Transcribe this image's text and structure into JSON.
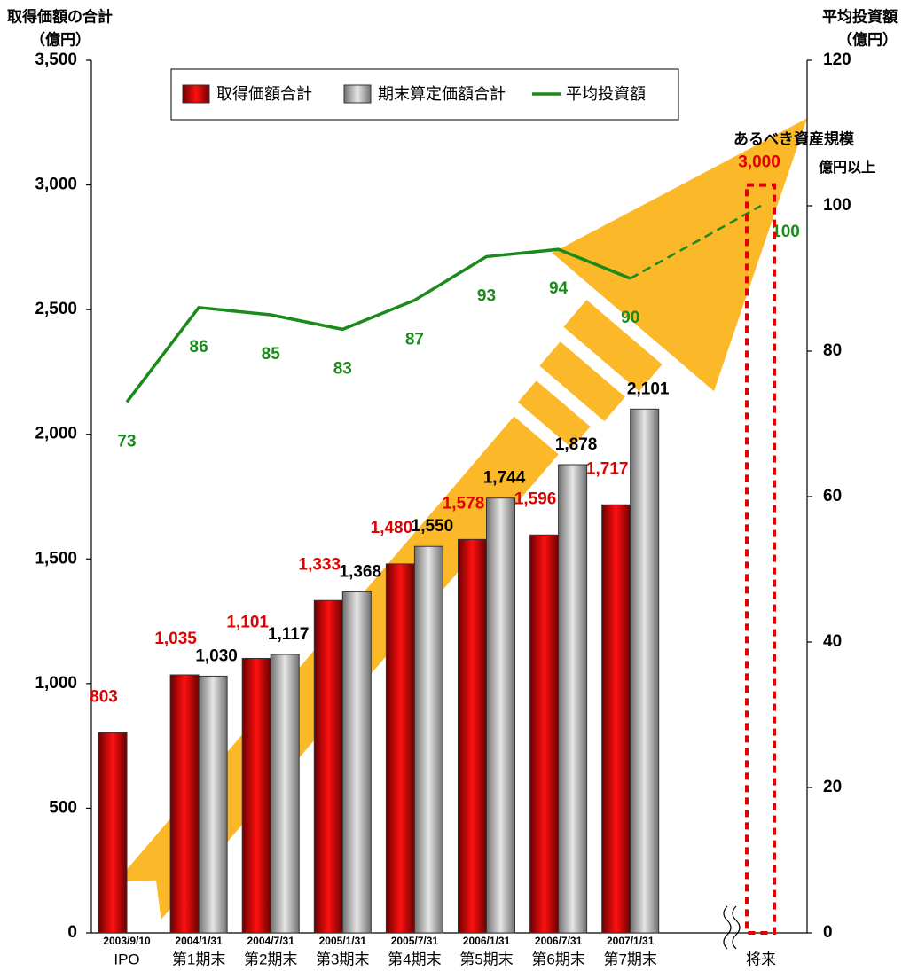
{
  "chart_data": {
    "type": "bar",
    "y_title": "取得価額の合計",
    "y_unit": "（億円）",
    "y2_title": "平均投資額",
    "y2_unit": "（億円）",
    "categories": [
      "IPO",
      "第1期末",
      "第2期末",
      "第3期末",
      "第4期末",
      "第5期末",
      "第6期末",
      "第7期末",
      "将来"
    ],
    "dates": [
      "2003/9/10",
      "2004/1/31",
      "2004/7/31",
      "2005/1/31",
      "2005/7/31",
      "2006/1/31",
      "2006/7/31",
      "2007/1/31",
      null
    ],
    "series": [
      {
        "name": "取得価額合計",
        "color": "#e00000",
        "values": [
          803,
          1035,
          1101,
          1333,
          1480,
          1578,
          1596,
          1717,
          null
        ],
        "value_labels": [
          "803",
          "1,035",
          "1,101",
          "1,333",
          "1,480",
          "1,578",
          "1,596",
          "1,717",
          null
        ]
      },
      {
        "name": "期末算定価額合計",
        "color": "#a0a0a0",
        "values": [
          null,
          1030,
          1117,
          1368,
          1550,
          1744,
          1878,
          2101,
          null
        ],
        "value_labels": [
          null,
          "1,030",
          "1,117",
          "1,368",
          "1,550",
          "1,744",
          "1,878",
          "2,101",
          null
        ]
      },
      {
        "name": "平均投資額",
        "type": "line",
        "axis": "y2",
        "color": "#1a8a1a",
        "values": [
          73,
          86,
          85,
          83,
          87,
          93,
          94,
          90,
          100
        ]
      }
    ],
    "target": {
      "label": "あるべき資産規模",
      "value": 3000,
      "value_label": "3,000",
      "unit": "億円以上"
    },
    "ylim": [
      0,
      3500
    ],
    "yticks": [
      0,
      500,
      {
        "value": 1000,
        "label": "1,000"
      },
      {
        "value": 1500,
        "label": "1,500"
      },
      {
        "value": 2000,
        "label": "2,000"
      },
      {
        "value": 2500,
        "label": "2,500"
      },
      {
        "value": 3000,
        "label": "3,000"
      },
      {
        "value": 3500,
        "label": "3,500"
      }
    ],
    "y2lim": [
      0,
      120
    ],
    "y2ticks": [
      0,
      20,
      40,
      60,
      80,
      100,
      120
    ]
  }
}
